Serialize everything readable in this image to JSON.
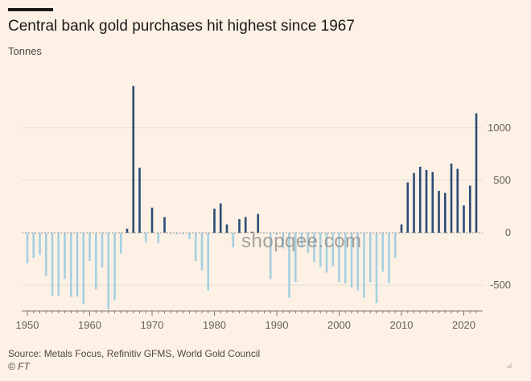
{
  "chart_data": {
    "type": "bar",
    "title": "Central bank gold purchases hit highest since 1967",
    "ylabel": "Tonnes",
    "xlabel": "",
    "ylim": [
      -750,
      1400
    ],
    "yticks": [
      1000,
      500,
      0,
      -500
    ],
    "ytick_labels": [
      "1000",
      "500",
      "0",
      "-500"
    ],
    "xticks": [
      1950,
      1960,
      1970,
      1980,
      1990,
      2000,
      2010,
      2020
    ],
    "xtick_labels": [
      "1950",
      "1960",
      "1970",
      "1980",
      "1990",
      "2000",
      "2010",
      "2020"
    ],
    "grid": "horizontal",
    "colors": {
      "positive": "#2b4c75",
      "negative": "#a4d0e0",
      "grid": "#e3dbd2",
      "zero_line": "#9c9792",
      "text": "#66605c"
    },
    "years": [
      1950,
      1951,
      1952,
      1953,
      1954,
      1955,
      1956,
      1957,
      1958,
      1959,
      1960,
      1961,
      1962,
      1963,
      1964,
      1965,
      1966,
      1967,
      1968,
      1969,
      1970,
      1971,
      1972,
      1973,
      1974,
      1975,
      1976,
      1977,
      1978,
      1979,
      1980,
      1981,
      1982,
      1983,
      1984,
      1985,
      1986,
      1987,
      1988,
      1989,
      1990,
      1991,
      1992,
      1993,
      1994,
      1995,
      1996,
      1997,
      1998,
      1999,
      2000,
      2001,
      2002,
      2003,
      2004,
      2005,
      2006,
      2007,
      2008,
      2009,
      2010,
      2011,
      2012,
      2013,
      2014,
      2015,
      2016,
      2017,
      2018,
      2019,
      2020,
      2021,
      2022
    ],
    "values": [
      -290,
      -240,
      -210,
      -410,
      -600,
      -600,
      -440,
      -610,
      -610,
      -680,
      -270,
      -540,
      -330,
      -730,
      -640,
      -200,
      40,
      1400,
      620,
      -90,
      240,
      -100,
      150,
      -10,
      -15,
      -15,
      -60,
      -270,
      -360,
      -550,
      230,
      280,
      80,
      -140,
      130,
      150,
      10,
      180,
      -5,
      -440,
      -25,
      -150,
      -620,
      -470,
      -140,
      -190,
      -280,
      -330,
      -380,
      -320,
      -470,
      -480,
      -520,
      -550,
      -620,
      -470,
      -670,
      -370,
      -480,
      -240,
      80,
      480,
      570,
      630,
      600,
      580,
      400,
      380,
      660,
      610,
      260,
      450,
      1140
    ]
  },
  "footer": {
    "source": "Source: Metals Focus, Refinitiv GFMS, World Gold Council",
    "credit": "© FT"
  },
  "watermark": "shopqee.com"
}
